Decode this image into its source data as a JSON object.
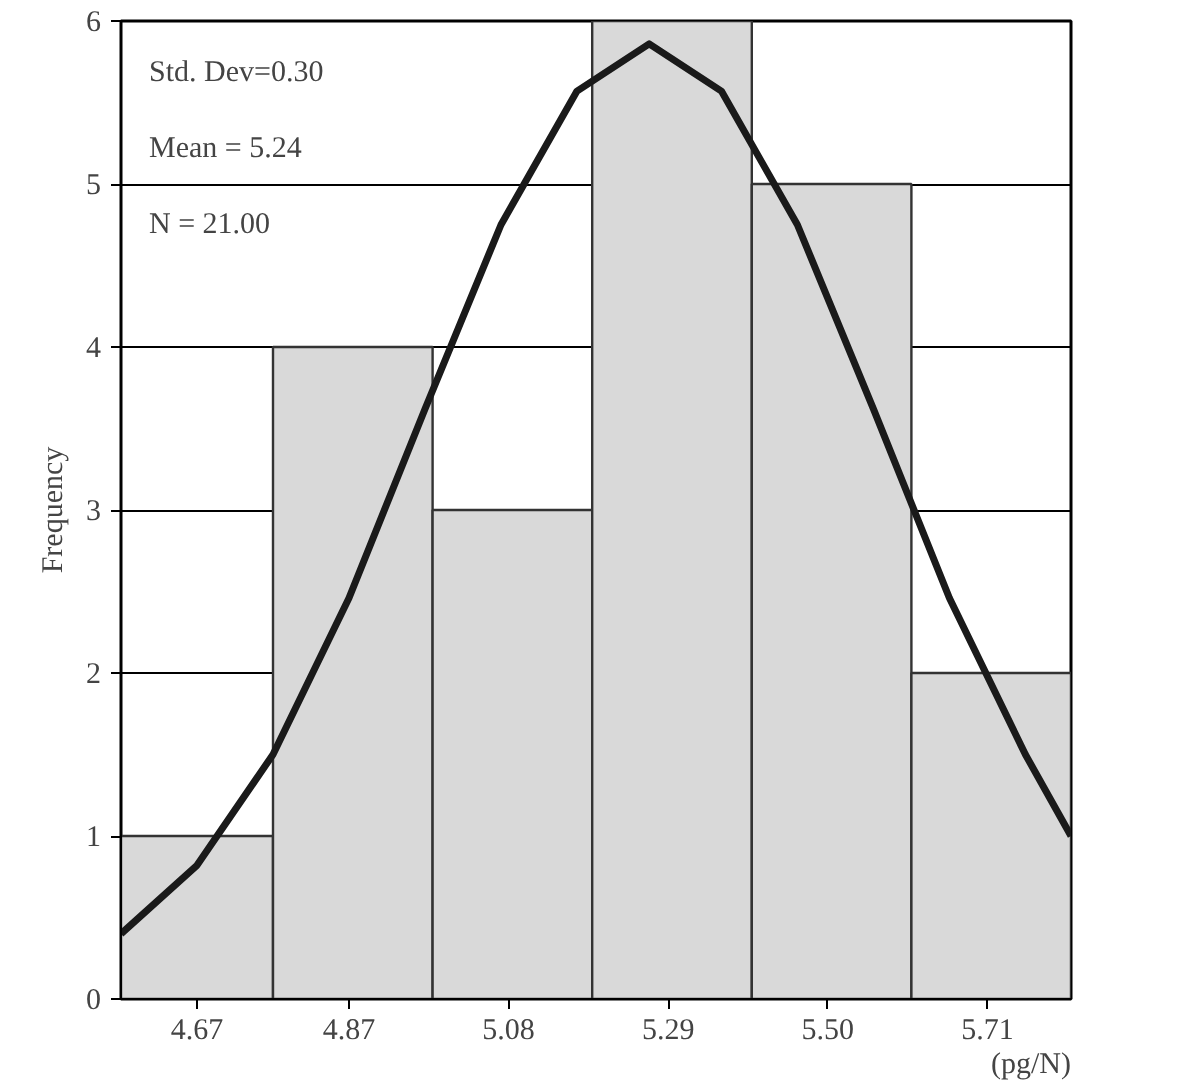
{
  "chart_data": {
    "type": "histogram",
    "xlabel": "(pg/N)",
    "ylabel": "Frequency",
    "annotations": [
      "Std. Dev=0.30",
      "Mean = 5.24",
      "N = 21.00"
    ],
    "xlim": [
      4.57,
      5.82
    ],
    "ylim": [
      0,
      6
    ],
    "xticks": [
      4.67,
      4.87,
      5.08,
      5.29,
      {
        "value": 5.5,
        "label": "5.50"
      },
      5.71
    ],
    "yticks": [
      0,
      1,
      2,
      3,
      4,
      5,
      6
    ],
    "grid": "y",
    "series": [
      {
        "color": "#d9d9d9",
        "bins": [
          4.57,
          4.77,
          4.98,
          5.19,
          5.4,
          5.61,
          5.82
        ],
        "values": [
          1,
          4,
          3,
          6,
          5,
          2
        ]
      },
      {
        "type": "line",
        "color": "#1a1a1a",
        "x": [
          4.57,
          4.67,
          4.77,
          4.87,
          4.97,
          5.07,
          5.17,
          5.265,
          5.36,
          5.46,
          5.56,
          5.66,
          5.76,
          5.82
        ],
        "values": [
          0.4,
          0.82,
          1.5,
          2.46,
          3.62,
          4.75,
          5.57,
          5.86,
          5.57,
          4.75,
          3.62,
          2.46,
          1.5,
          1.0
        ]
      }
    ]
  }
}
